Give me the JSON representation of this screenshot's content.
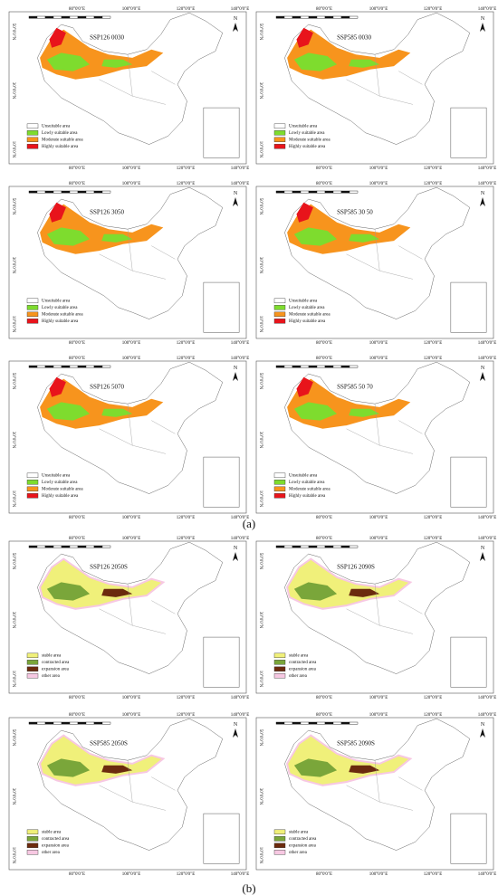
{
  "axes": {
    "lon": [
      "80°0'0\"E",
      "100°0'0\"E",
      "120°0'0\"E",
      "140°0'0\"E"
    ],
    "lat": [
      "50°0'0\"N",
      "30°0'0\"N",
      "10°0'0\"N"
    ],
    "north": "N"
  },
  "panels": [
    {
      "label": "(a)",
      "legend": [
        {
          "label": "Unsuitable area",
          "color": "#ffffff"
        },
        {
          "label": "Lowly suitable area",
          "color": "#7edc2e"
        },
        {
          "label": "Moderate suitable area",
          "color": "#f7941d"
        },
        {
          "label": "Highly suitable area",
          "color": "#e8141b"
        }
      ],
      "maps": [
        {
          "title": "SSP126 0030"
        },
        {
          "title": "SSP585 0030"
        },
        {
          "title": "SSP126 3050"
        },
        {
          "title": "SSP585 30 50"
        },
        {
          "title": "SSP126 5070"
        },
        {
          "title": "SSP585 50 70"
        }
      ]
    },
    {
      "label": "(b)",
      "legend": [
        {
          "label": "stable area",
          "color": "#f0f07a"
        },
        {
          "label": "contracted area",
          "color": "#7aa63a"
        },
        {
          "label": "expansion area",
          "color": "#6b2a0e"
        },
        {
          "label": "other area",
          "color": "#f7c8e2"
        }
      ],
      "maps": [
        {
          "title": "SSP126 2050S"
        },
        {
          "title": "SSP126 2090S"
        },
        {
          "title": "SSP585 2050S"
        },
        {
          "title": "SSP585 2090S"
        }
      ]
    }
  ]
}
